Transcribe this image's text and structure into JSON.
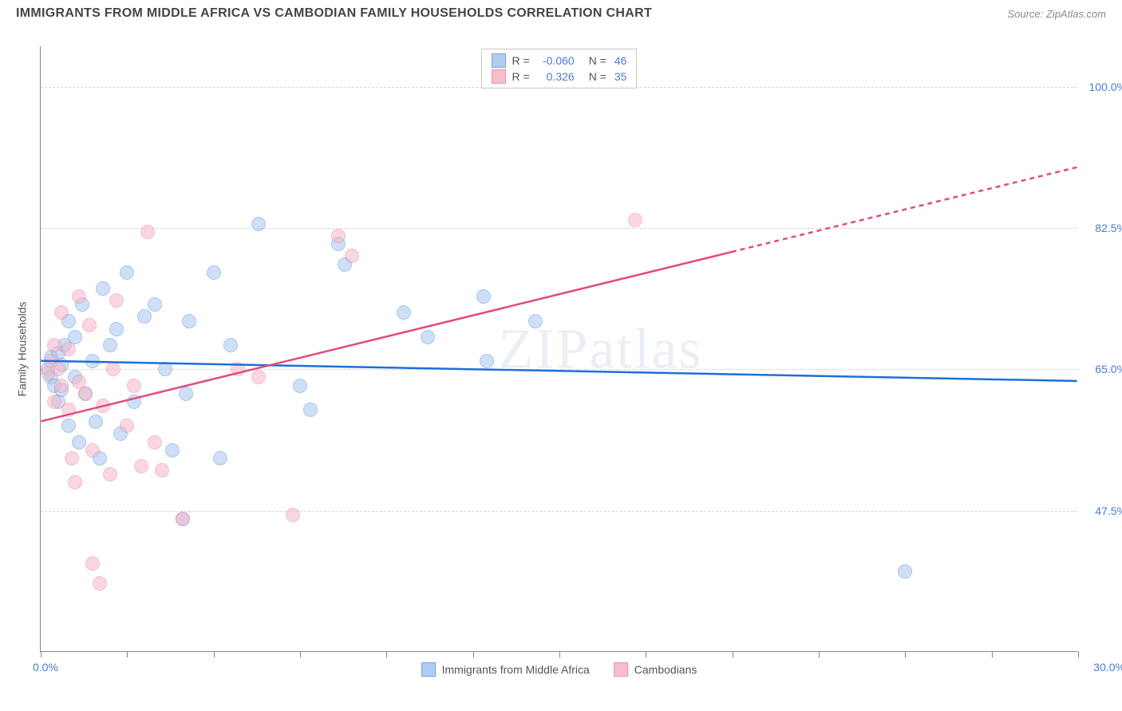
{
  "title": "IMMIGRANTS FROM MIDDLE AFRICA VS CAMBODIAN FAMILY HOUSEHOLDS CORRELATION CHART",
  "source": "Source: ZipAtlas.com",
  "watermark": "ZIPatlas",
  "ylabel": "Family Households",
  "chart": {
    "type": "scatter-correlation",
    "background_color": "#ffffff",
    "grid_color": "#d5d5d5",
    "axis_color": "#888888",
    "xlim": [
      0.0,
      30.0
    ],
    "ylim": [
      30.0,
      105.0
    ],
    "x_min_label": "0.0%",
    "x_max_label": "30.0%",
    "xtick_positions": [
      0.0,
      2.5,
      5.0,
      7.5,
      10.0,
      12.5,
      15.0,
      17.5,
      20.0,
      22.5,
      25.0,
      27.5,
      30.0
    ],
    "y_gridlines": [
      {
        "value": 47.5,
        "label": "47.5%"
      },
      {
        "value": 65.0,
        "label": "65.0%"
      },
      {
        "value": 82.5,
        "label": "82.5%"
      },
      {
        "value": 100.0,
        "label": "100.0%"
      }
    ],
    "tick_label_color": "#4a7bd0",
    "tick_label_fontsize": 14,
    "series": [
      {
        "name": "Immigrants from Middle Africa",
        "fill": "#a8c8f0",
        "stroke": "#6699e0",
        "line_color": "#1e6fd9",
        "line_width": 2.5,
        "line_dash": "none",
        "marker_radius": 9,
        "fill_opacity": 0.55,
        "r": "-0.060",
        "n": "46",
        "trend": {
          "x1": 0.0,
          "y1": 66.0,
          "x2": 30.0,
          "y2": 63.5
        },
        "points": [
          [
            0.2,
            65.0
          ],
          [
            0.3,
            64.0
          ],
          [
            0.3,
            66.5
          ],
          [
            0.4,
            63.0
          ],
          [
            0.5,
            67.0
          ],
          [
            0.5,
            61.0
          ],
          [
            0.6,
            65.5
          ],
          [
            0.7,
            68.0
          ],
          [
            0.8,
            58.0
          ],
          [
            0.8,
            71.0
          ],
          [
            1.0,
            69.0
          ],
          [
            1.0,
            64.0
          ],
          [
            1.1,
            56.0
          ],
          [
            1.2,
            73.0
          ],
          [
            1.3,
            62.0
          ],
          [
            1.5,
            66.0
          ],
          [
            1.6,
            58.5
          ],
          [
            1.7,
            54.0
          ],
          [
            1.8,
            75.0
          ],
          [
            2.0,
            68.0
          ],
          [
            2.2,
            70.0
          ],
          [
            2.3,
            57.0
          ],
          [
            2.5,
            77.0
          ],
          [
            2.7,
            61.0
          ],
          [
            3.0,
            71.5
          ],
          [
            3.3,
            73.0
          ],
          [
            3.6,
            65.0
          ],
          [
            3.8,
            55.0
          ],
          [
            4.1,
            46.5
          ],
          [
            4.2,
            62.0
          ],
          [
            4.3,
            71.0
          ],
          [
            5.0,
            77.0
          ],
          [
            5.2,
            54.0
          ],
          [
            5.5,
            68.0
          ],
          [
            6.3,
            83.0
          ],
          [
            7.5,
            63.0
          ],
          [
            7.8,
            60.0
          ],
          [
            8.6,
            80.5
          ],
          [
            8.8,
            78.0
          ],
          [
            10.5,
            72.0
          ],
          [
            11.2,
            69.0
          ],
          [
            12.8,
            74.0
          ],
          [
            12.9,
            66.0
          ],
          [
            14.3,
            71.0
          ],
          [
            25.0,
            40.0
          ],
          [
            0.6,
            62.5
          ]
        ]
      },
      {
        "name": "Cambodians",
        "fill": "#f6b8c8",
        "stroke": "#e88aa5",
        "line_color": "#e14b7b",
        "line_width": 2.5,
        "line_dash_solid_to_x": 20.0,
        "marker_radius": 9,
        "fill_opacity": 0.55,
        "r": "0.326",
        "n": "35",
        "trend": {
          "x1": 0.0,
          "y1": 58.5,
          "x2": 30.0,
          "y2": 90.0
        },
        "points": [
          [
            0.2,
            64.5
          ],
          [
            0.3,
            66.0
          ],
          [
            0.4,
            61.0
          ],
          [
            0.4,
            68.0
          ],
          [
            0.5,
            65.0
          ],
          [
            0.6,
            63.0
          ],
          [
            0.6,
            72.0
          ],
          [
            0.8,
            60.0
          ],
          [
            0.8,
            67.5
          ],
          [
            0.9,
            54.0
          ],
          [
            1.0,
            51.0
          ],
          [
            1.1,
            74.0
          ],
          [
            1.1,
            63.5
          ],
          [
            1.3,
            62.0
          ],
          [
            1.4,
            70.5
          ],
          [
            1.5,
            55.0
          ],
          [
            1.5,
            41.0
          ],
          [
            1.7,
            38.5
          ],
          [
            1.8,
            60.5
          ],
          [
            2.0,
            52.0
          ],
          [
            2.1,
            65.0
          ],
          [
            2.2,
            73.5
          ],
          [
            2.5,
            58.0
          ],
          [
            2.7,
            63.0
          ],
          [
            2.9,
            53.0
          ],
          [
            3.1,
            82.0
          ],
          [
            3.3,
            56.0
          ],
          [
            3.5,
            52.5
          ],
          [
            4.1,
            46.5
          ],
          [
            5.7,
            65.0
          ],
          [
            6.3,
            64.0
          ],
          [
            7.3,
            47.0
          ],
          [
            8.6,
            81.5
          ],
          [
            9.0,
            79.0
          ],
          [
            17.2,
            83.5
          ]
        ]
      }
    ]
  },
  "legend_top": {
    "r_label": "R =",
    "n_label": "N ="
  },
  "legend_bottom": {
    "series_a": "Immigrants from Middle Africa",
    "series_b": "Cambodians"
  }
}
